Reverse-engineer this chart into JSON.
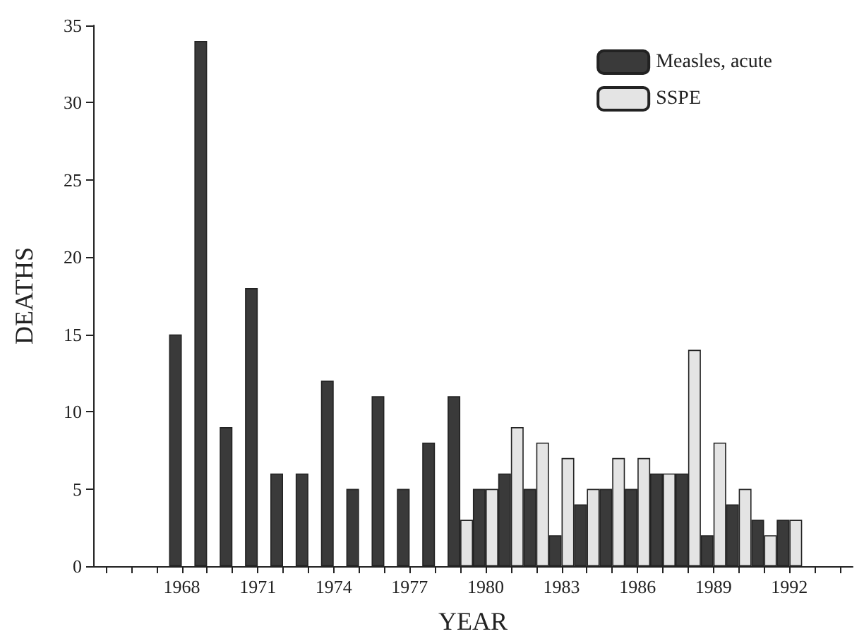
{
  "chart_data": {
    "type": "bar",
    "xlabel": "YEAR",
    "ylabel": "DEATHS",
    "categories": [
      null,
      null,
      null,
      "1968",
      null,
      null,
      "1971",
      null,
      null,
      "1974",
      null,
      null,
      "1977",
      null,
      null,
      "1980",
      null,
      null,
      "1983",
      null,
      null,
      "1986",
      null,
      null,
      "1989",
      null,
      null,
      "1992",
      null,
      null
    ],
    "series": [
      {
        "name": "Measles, acute",
        "color": "#3a3a3a",
        "values": [
          null,
          null,
          null,
          15,
          34,
          9,
          18,
          6,
          6,
          12,
          5,
          11,
          5,
          8,
          11,
          5,
          6,
          5,
          2,
          4,
          5,
          5,
          6,
          6,
          2,
          4,
          3,
          3,
          null,
          null
        ]
      },
      {
        "name": "SSPE",
        "color": "#e4e4e4",
        "values": [
          null,
          null,
          null,
          null,
          null,
          null,
          null,
          null,
          null,
          null,
          null,
          null,
          null,
          null,
          3,
          5,
          9,
          8,
          7,
          5,
          7,
          7,
          6,
          14,
          8,
          5,
          2,
          3,
          null,
          null
        ]
      }
    ],
    "ylim": [
      0,
      35
    ],
    "yticks": [
      0,
      5,
      10,
      15,
      20,
      25,
      30,
      35
    ],
    "grid": false,
    "legend": "top right"
  }
}
